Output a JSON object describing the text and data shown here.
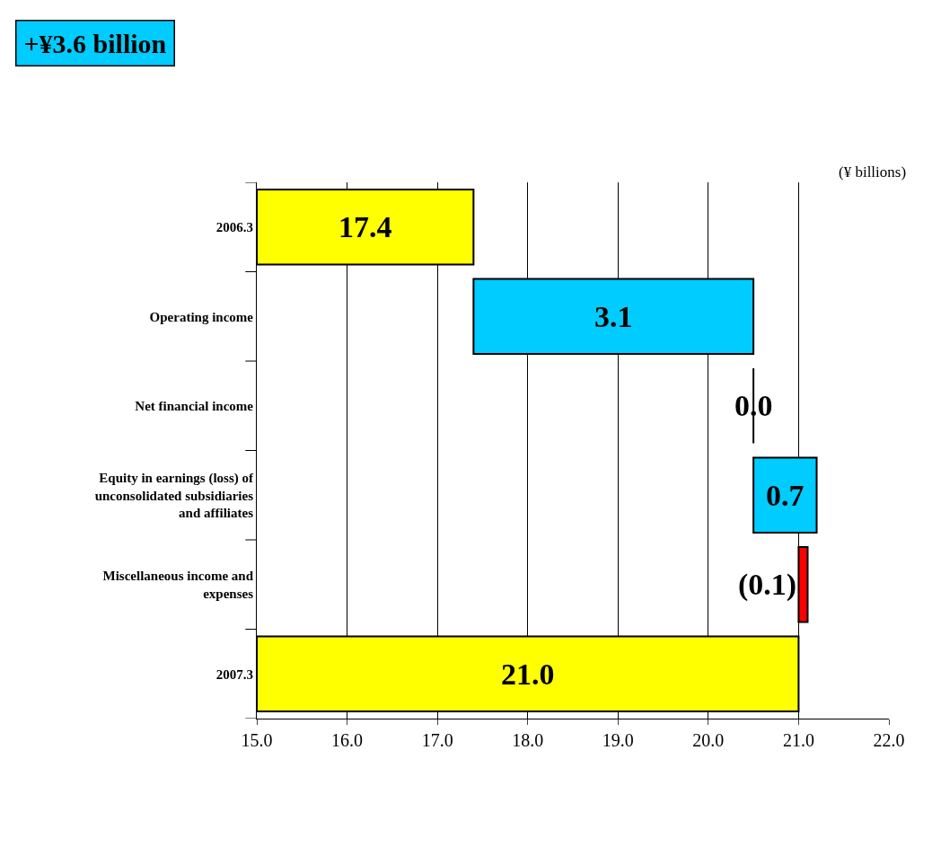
{
  "chart_data": {
    "type": "bar",
    "orientation": "horizontal",
    "title": "+¥3.6 billion",
    "annotations": [
      "(¥ billions)"
    ],
    "categories": [
      "2006.3",
      "Operating income",
      "Net financial income",
      "Equity in earnings (loss) of unconsolidated subsidiaries and affiliates",
      "Miscellaneous income and expenses",
      "2007.3"
    ],
    "base": [
      15,
      17.4,
      20.5,
      20.5,
      21.1,
      15
    ],
    "values": [
      2.4,
      3.1,
      0.0,
      0.7,
      -0.1,
      6.0
    ],
    "value_labels": [
      "17.4",
      "3.1",
      "0.0",
      "0.7",
      "(0.1)",
      "21.0"
    ],
    "colors": [
      "#ffff00",
      "#00ccff",
      "#000000",
      "#00ccff",
      "#ff0000",
      "#ffff00"
    ],
    "xlim": [
      15,
      22
    ],
    "xticks": [
      {
        "value": 15,
        "label": "15.0"
      },
      {
        "value": 16,
        "label": "16.0"
      },
      {
        "value": 17,
        "label": "17.0"
      },
      {
        "value": 18,
        "label": "18.0"
      },
      {
        "value": 19,
        "label": "19.0"
      },
      {
        "value": 20,
        "label": "20.0"
      },
      {
        "value": 21,
        "label": "21.0"
      },
      {
        "value": 22,
        "label": "22.0"
      }
    ],
    "grid": "x"
  }
}
